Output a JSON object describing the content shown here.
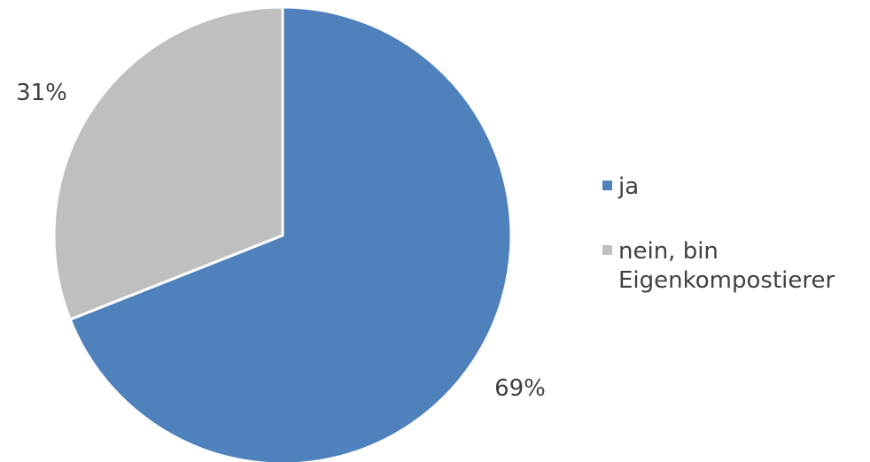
{
  "chart_data": {
    "type": "pie",
    "title": "",
    "categories": [
      "ja",
      "nein, bin Eigenkompostierer"
    ],
    "values": [
      69,
      31
    ],
    "data_labels": [
      "69%",
      "31%"
    ],
    "colors": [
      "#4f81bd",
      "#bfbfbf"
    ],
    "legend": {
      "placement": "right",
      "entries": [
        {
          "lines": [
            "ja"
          ]
        },
        {
          "lines": [
            "nein, bin",
            "Eigenkompostierer"
          ]
        }
      ]
    }
  }
}
